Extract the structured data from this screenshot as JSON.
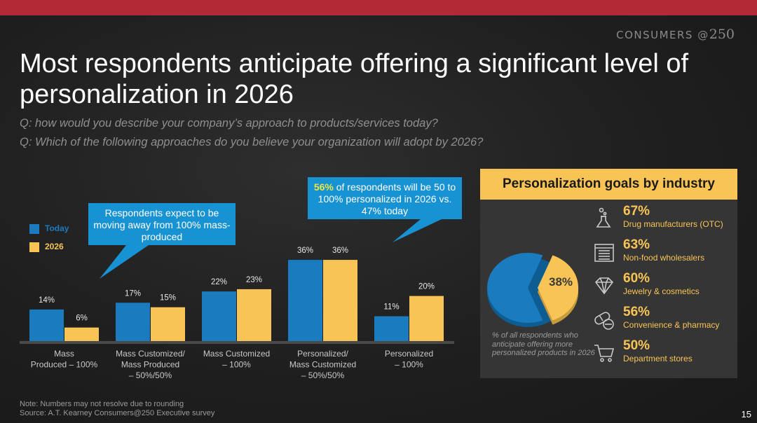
{
  "header": {
    "brand_text": "CONSUMERS @",
    "brand_num": "250",
    "title": "Most respondents anticipate offering a significant level of personalization in 2026",
    "question_1": "Q: how would you describe your company’s approach to products/services today?",
    "question_2": "Q: Which of the following approaches do you believe your organization will adopt by 2026?"
  },
  "chart_data": {
    "type": "bar",
    "categories": [
      [
        "Mass",
        "Produced – 100%"
      ],
      [
        "Mass Customized/",
        "Mass Produced",
        "– 50%/50%"
      ],
      [
        "Mass Customized",
        "– 100%"
      ],
      [
        "Personalized/",
        "Mass Customized",
        "– 50%/50%"
      ],
      [
        "Personalized",
        "– 100%"
      ]
    ],
    "series": [
      {
        "name": "Today",
        "color": "#1a7bbf",
        "values": [
          14,
          17,
          22,
          36,
          11
        ]
      },
      {
        "name": "2026",
        "color": "#f9c456",
        "values": [
          6,
          15,
          23,
          36,
          20
        ]
      }
    ],
    "value_suffix": "%",
    "ylim": [
      0,
      40
    ],
    "legend": "left",
    "grid": false
  },
  "callouts": {
    "left": "Respondents expect to be moving away from 100% mass-produced",
    "right_highlight": "56%",
    "right_text": " of respondents will be 50 to 100% personalized in 2026 vs. 47% today"
  },
  "panel": {
    "title": "Personalization goals by industry",
    "pie_value": 38,
    "pie_label": "38%",
    "pie_note": "% of all respondents who anticipate offering more personalized products  in 2026",
    "industries": [
      {
        "pct": "67%",
        "name": "Drug manufacturers (OTC)",
        "icon": "flask-icon"
      },
      {
        "pct": "63%",
        "name": "Non-food wholesalers",
        "icon": "warehouse-icon"
      },
      {
        "pct": "60%",
        "name": "Jewelry & cosmetics",
        "icon": "diamond-icon"
      },
      {
        "pct": "56%",
        "name": "Convenience & pharmacy",
        "icon": "pills-icon"
      },
      {
        "pct": "50%",
        "name": "Department stores",
        "icon": "cart-icon"
      }
    ]
  },
  "footer": {
    "note": "Note: Numbers may not resolve due to rounding",
    "source": "Source: A.T. Kearney Consumers@250 Executive survey",
    "page": "15"
  },
  "colors": {
    "accent_red": "#b12a35",
    "today_blue": "#1a7bbf",
    "gold": "#f9c456",
    "callout_blue": "#1792d2"
  }
}
